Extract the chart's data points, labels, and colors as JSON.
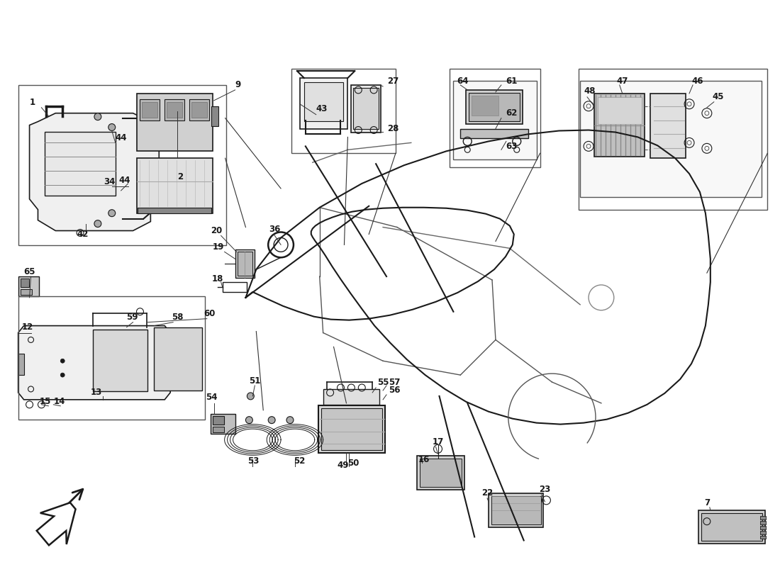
{
  "bg_color": "#ffffff",
  "lc": "#1a1a1a",
  "gray1": "#aaaaaa",
  "gray2": "#cccccc",
  "gray3": "#888888",
  "figsize": [
    11.0,
    8.0
  ],
  "dpi": 100
}
